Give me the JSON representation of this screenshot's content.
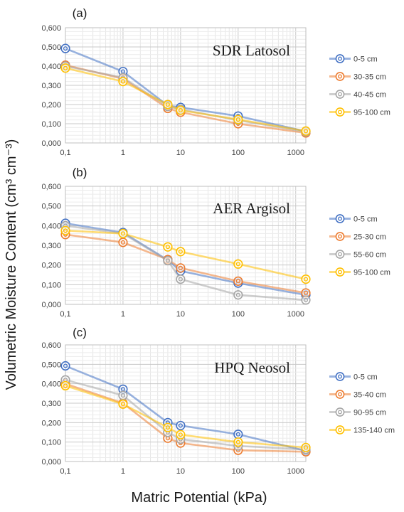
{
  "figure": {
    "ylabel": "Volumetric Moisture Content (cm³ cm⁻³)",
    "xlabel": "Matric Potential (kPa)"
  },
  "chart_data": [
    {
      "type": "line",
      "panel_label": "(a)",
      "title": "SDR Latosol",
      "x_scale": "log",
      "x": [
        0.1,
        1,
        6,
        10,
        100,
        1500
      ],
      "xticks": [
        "0,1",
        "1",
        "10",
        "100",
        "1000"
      ],
      "ylim": [
        0,
        0.6
      ],
      "yticks": [
        "0,000",
        "0,100",
        "0,200",
        "0,300",
        "0,400",
        "0,500",
        "0,600"
      ],
      "grid": true,
      "legend_position": "right",
      "series": [
        {
          "name": "0-5 cm",
          "color": "#4472C4",
          "values": [
            0.492,
            0.372,
            0.195,
            0.185,
            0.14,
            0.06
          ]
        },
        {
          "name": "30-35 cm",
          "color": "#ED7D31",
          "values": [
            0.405,
            0.335,
            0.18,
            0.16,
            0.1,
            0.052
          ]
        },
        {
          "name": "40-45 cm",
          "color": "#A5A5A5",
          "values": [
            0.4,
            0.34,
            0.19,
            0.175,
            0.118,
            0.058
          ]
        },
        {
          "name": "95-100 cm",
          "color": "#FFC000",
          "values": [
            0.39,
            0.32,
            0.2,
            0.17,
            0.122,
            0.062
          ]
        }
      ]
    },
    {
      "type": "line",
      "panel_label": "(b)",
      "title": "AER Argisol",
      "x_scale": "log",
      "x": [
        0.1,
        1,
        6,
        10,
        100,
        1500
      ],
      "xticks": [
        "0,1",
        "1",
        "10",
        "100",
        "1000"
      ],
      "ylim": [
        0,
        0.6
      ],
      "yticks": [
        "0,000",
        "0,100",
        "0,200",
        "0,300",
        "0,400",
        "0,500",
        "0,600"
      ],
      "grid": true,
      "legend_position": "right",
      "series": [
        {
          "name": "0-5 cm",
          "color": "#4472C4",
          "values": [
            0.412,
            0.365,
            0.225,
            0.17,
            0.108,
            0.048
          ]
        },
        {
          "name": "25-30 cm",
          "color": "#ED7D31",
          "values": [
            0.355,
            0.315,
            0.228,
            0.185,
            0.118,
            0.058
          ]
        },
        {
          "name": "55-60 cm",
          "color": "#A5A5A5",
          "values": [
            0.4,
            0.36,
            0.222,
            0.128,
            0.048,
            0.022
          ]
        },
        {
          "name": "95-100 cm",
          "color": "#FFC000",
          "values": [
            0.375,
            0.36,
            0.292,
            0.268,
            0.205,
            0.128
          ]
        }
      ]
    },
    {
      "type": "line",
      "panel_label": "(c)",
      "title": "HPQ Neosol",
      "x_scale": "log",
      "x": [
        0.1,
        1,
        6,
        10,
        100,
        1500
      ],
      "xticks": [
        "0,1",
        "1",
        "10",
        "100",
        "1000"
      ],
      "ylim": [
        0,
        0.6
      ],
      "yticks": [
        "0,000",
        "0,100",
        "0,200",
        "0,300",
        "0,400",
        "0,500",
        "0,600"
      ],
      "grid": true,
      "legend_position": "right",
      "series": [
        {
          "name": "0-5 cm",
          "color": "#4472C4",
          "values": [
            0.492,
            0.372,
            0.2,
            0.185,
            0.14,
            0.055
          ]
        },
        {
          "name": "35-40 cm",
          "color": "#ED7D31",
          "values": [
            0.4,
            0.3,
            0.12,
            0.095,
            0.058,
            0.05
          ]
        },
        {
          "name": "90-95 cm",
          "color": "#A5A5A5",
          "values": [
            0.42,
            0.34,
            0.15,
            0.115,
            0.08,
            0.062
          ]
        },
        {
          "name": "135-140 cm",
          "color": "#FFC000",
          "values": [
            0.39,
            0.295,
            0.175,
            0.138,
            0.1,
            0.072
          ]
        }
      ]
    }
  ]
}
